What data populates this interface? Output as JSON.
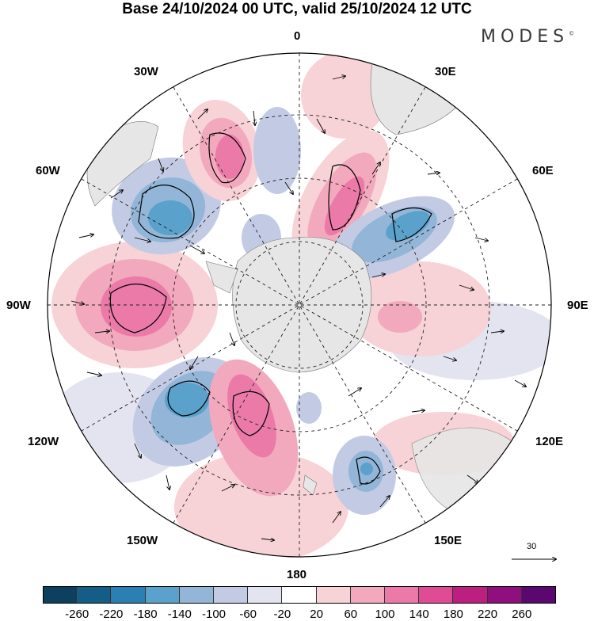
{
  "title": "Base 24/10/2024 00 UTC, valid 25/10/2024 12 UTC",
  "brand": "MODES",
  "brand_mark": "©",
  "lon_labels": {
    "top": "0",
    "bottom": "180",
    "left": "90W",
    "right": "90E",
    "nw30": "30W",
    "ne30": "30E",
    "nw60": "60W",
    "ne60": "60E",
    "sw120": "120W",
    "se120": "120E",
    "sw150": "150W",
    "se150": "150E"
  },
  "reference_vector": "30",
  "colorbar": {
    "ticks": [
      "-260",
      "-220",
      "-180",
      "-140",
      "-100",
      "-60",
      "-20",
      "20",
      "60",
      "100",
      "140",
      "180",
      "220",
      "260"
    ],
    "colors": [
      "#0d3f5f",
      "#145d86",
      "#2b7fb2",
      "#5aa1cc",
      "#93b5d8",
      "#c3cbe4",
      "#e4e4f1",
      "#ffffff",
      "#f7d2d6",
      "#f2a9bd",
      "#eb7aa8",
      "#e04b95",
      "#bd1f81",
      "#8e0f7d",
      "#5a0870"
    ]
  }
}
